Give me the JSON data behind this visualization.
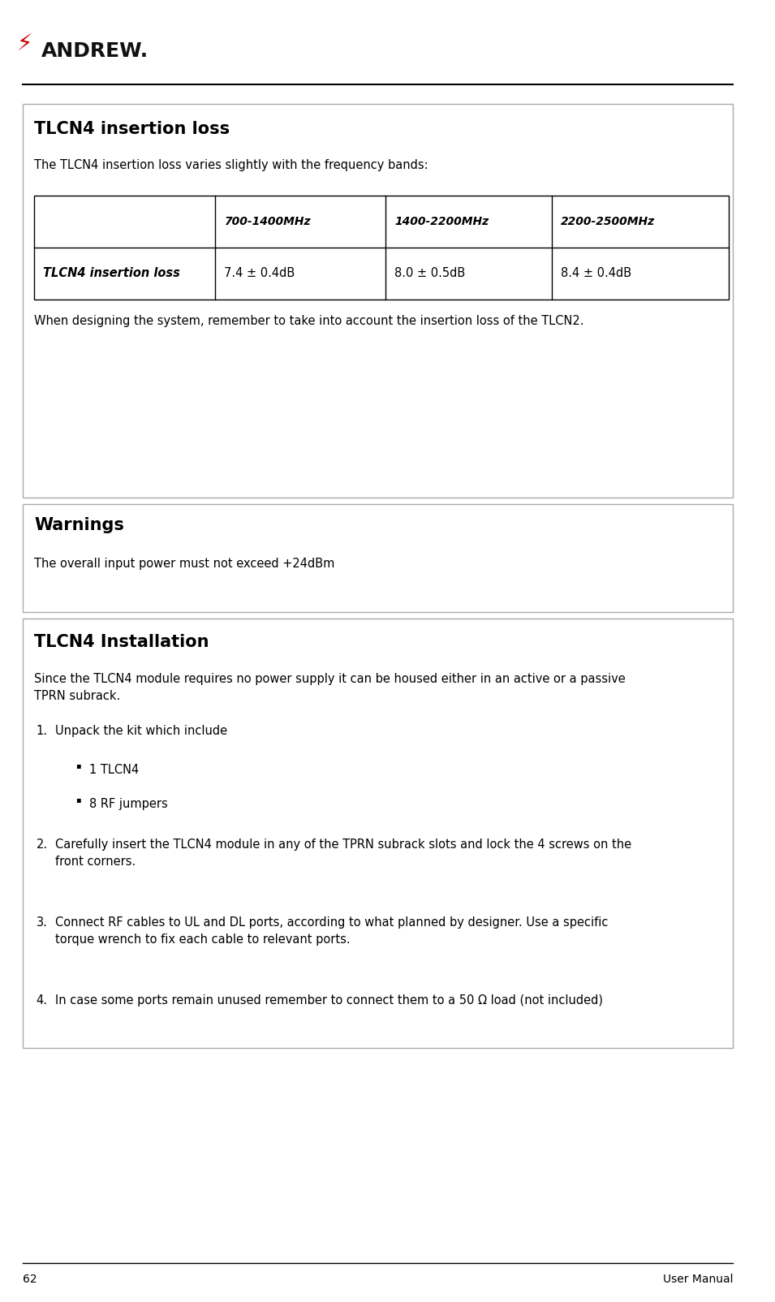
{
  "page_width": 9.55,
  "page_height": 16.04,
  "bg_color": "#ffffff",
  "footer_page": "62",
  "footer_right": "User Manual",
  "section1_title": "TLCN4 insertion loss",
  "section1_body1": "The TLCN4 insertion loss varies slightly with the frequency bands:",
  "table_headers": [
    "",
    "700-1400MHz",
    "1400-2200MHz",
    "2200-2500MHz"
  ],
  "table_row_label": "TLCN4 insertion loss",
  "table_row_values": [
    "7.4 ± 0.4dB",
    "8.0 ± 0.5dB",
    "8.4 ± 0.4dB"
  ],
  "section1_body2": "When designing the system, remember to take into account the insertion loss of the TLCN2.",
  "section2_title": "Warnings",
  "section2_body": "The overall input power must not exceed +24dBm",
  "section3_title": "TLCN4 Installation",
  "section3_body1": "Since the TLCN4 module requires no power supply it can be housed either in an active or a passive\nTPRN subrack.",
  "section3_items": [
    "Unpack the kit which include",
    "1 TLCN4",
    "8 RF jumpers",
    "Carefully insert the TLCN4 module in any of the TPRN subrack slots and lock the 4 screws on the\nfront corners.",
    "Connect RF cables to UL and DL ports, according to what planned by designer. Use a specific\ntorque wrench to fix each cable to relevant ports.",
    "In case some ports remain unused remember to connect them to a 50 Ω load (not included)"
  ],
  "text_color": "#000000",
  "title_fontsize": 15,
  "body_fontsize": 10.5,
  "table_header_fontsize": 10,
  "table_cell_fontsize": 10.5
}
